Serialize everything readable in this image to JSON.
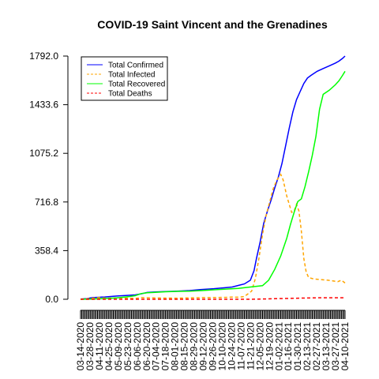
{
  "chart_data": {
    "type": "line",
    "title": "COVID-19 Saint Vincent and the Grenadines",
    "xlabel": "",
    "ylabel": "",
    "ylim": [
      0,
      1792.0
    ],
    "yticks": [
      "0.0",
      "358.4",
      "716.8",
      "1075.2",
      "1433.6",
      "1792.0"
    ],
    "xticks": [
      "03-14-2020",
      "03-28-2020",
      "04-11-2020",
      "04-25-2020",
      "05-09-2020",
      "05-23-2020",
      "06-06-2020",
      "06-20-2020",
      "07-04-2020",
      "07-18-2020",
      "08-01-2020",
      "08-15-2020",
      "08-29-2020",
      "09-12-2020",
      "09-26-2020",
      "10-10-2020",
      "10-24-2020",
      "11-07-2020",
      "11-21-2020",
      "12-05-2020",
      "12-19-2020",
      "01-02-2021",
      "01-16-2021",
      "01-30-2021",
      "02-13-2021",
      "02-27-2021",
      "03-13-2021",
      "03-27-2021",
      "04-10-2021"
    ],
    "grid": false,
    "legend": {
      "position": "top-left"
    },
    "series": [
      {
        "name": "Total Confirmed",
        "color": "#0000ff",
        "dash": "solid",
        "points": [
          [
            0,
            1
          ],
          [
            5,
            4
          ],
          [
            10,
            12
          ],
          [
            20,
            17
          ],
          [
            30,
            24
          ],
          [
            40,
            29
          ],
          [
            45,
            32
          ],
          [
            50,
            40
          ],
          [
            55,
            50
          ],
          [
            60,
            53
          ],
          [
            70,
            57
          ],
          [
            80,
            60
          ],
          [
            90,
            64
          ],
          [
            95,
            68
          ],
          [
            100,
            72
          ],
          [
            110,
            78
          ],
          [
            120,
            86
          ],
          [
            125,
            90
          ],
          [
            130,
            102
          ],
          [
            135,
            113
          ],
          [
            140,
            140
          ],
          [
            143,
            210
          ],
          [
            145,
            300
          ],
          [
            148,
            420
          ],
          [
            151,
            560
          ],
          [
            154,
            650
          ],
          [
            157,
            730
          ],
          [
            160,
            820
          ],
          [
            163,
            900
          ],
          [
            166,
            1000
          ],
          [
            169,
            1130
          ],
          [
            172,
            1260
          ],
          [
            175,
            1380
          ],
          [
            178,
            1470
          ],
          [
            181,
            1530
          ],
          [
            184,
            1590
          ],
          [
            187,
            1630
          ],
          [
            190,
            1650
          ],
          [
            195,
            1680
          ],
          [
            200,
            1700
          ],
          [
            205,
            1720
          ],
          [
            210,
            1740
          ],
          [
            213,
            1755
          ],
          [
            216,
            1775
          ],
          [
            218,
            1792
          ]
        ]
      },
      {
        "name": "Total Infected",
        "color": "#ffa500",
        "dash": "dashed",
        "points": [
          [
            0,
            1
          ],
          [
            5,
            3
          ],
          [
            10,
            8
          ],
          [
            15,
            12
          ],
          [
            20,
            9
          ],
          [
            30,
            10
          ],
          [
            40,
            8
          ],
          [
            45,
            6
          ],
          [
            50,
            12
          ],
          [
            55,
            11
          ],
          [
            60,
            10
          ],
          [
            70,
            9
          ],
          [
            80,
            8
          ],
          [
            90,
            10
          ],
          [
            100,
            12
          ],
          [
            110,
            13
          ],
          [
            120,
            14
          ],
          [
            125,
            16
          ],
          [
            130,
            15
          ],
          [
            135,
            20
          ],
          [
            138,
            40
          ],
          [
            141,
            60
          ],
          [
            144,
            150
          ],
          [
            147,
            300
          ],
          [
            150,
            480
          ],
          [
            153,
            620
          ],
          [
            156,
            720
          ],
          [
            159,
            820
          ],
          [
            162,
            880
          ],
          [
            165,
            920
          ],
          [
            167,
            880
          ],
          [
            170,
            760
          ],
          [
            172,
            700
          ],
          [
            174,
            640
          ],
          [
            176,
            650
          ],
          [
            178,
            700
          ],
          [
            180,
            650
          ],
          [
            182,
            500
          ],
          [
            184,
            300
          ],
          [
            186,
            200
          ],
          [
            188,
            160
          ],
          [
            192,
            150
          ],
          [
            198,
            145
          ],
          [
            204,
            140
          ],
          [
            208,
            135
          ],
          [
            212,
            130
          ],
          [
            215,
            140
          ],
          [
            218,
            120
          ]
        ]
      },
      {
        "name": "Total Recovered",
        "color": "#00ff00",
        "dash": "solid",
        "points": [
          [
            0,
            0
          ],
          [
            10,
            2
          ],
          [
            20,
            5
          ],
          [
            30,
            10
          ],
          [
            40,
            20
          ],
          [
            45,
            26
          ],
          [
            50,
            42
          ],
          [
            55,
            48
          ],
          [
            60,
            50
          ],
          [
            70,
            55
          ],
          [
            80,
            58
          ],
          [
            90,
            60
          ],
          [
            100,
            64
          ],
          [
            110,
            70
          ],
          [
            120,
            75
          ],
          [
            130,
            80
          ],
          [
            140,
            90
          ],
          [
            150,
            100
          ],
          [
            155,
            140
          ],
          [
            160,
            220
          ],
          [
            165,
            320
          ],
          [
            170,
            450
          ],
          [
            173,
            550
          ],
          [
            176,
            640
          ],
          [
            179,
            720
          ],
          [
            182,
            740
          ],
          [
            185,
            830
          ],
          [
            188,
            940
          ],
          [
            191,
            1060
          ],
          [
            194,
            1200
          ],
          [
            197,
            1400
          ],
          [
            200,
            1510
          ],
          [
            205,
            1540
          ],
          [
            210,
            1580
          ],
          [
            213,
            1610
          ],
          [
            216,
            1650
          ],
          [
            218,
            1680
          ]
        ]
      },
      {
        "name": "Total Deaths",
        "color": "#ff0000",
        "dash": "dashed",
        "points": [
          [
            0,
            0
          ],
          [
            140,
            0
          ],
          [
            150,
            2
          ],
          [
            160,
            4
          ],
          [
            170,
            6
          ],
          [
            180,
            8
          ],
          [
            190,
            10
          ],
          [
            200,
            11
          ],
          [
            210,
            11
          ],
          [
            218,
            11
          ]
        ]
      }
    ],
    "x_domain": [
      0,
      218
    ]
  }
}
